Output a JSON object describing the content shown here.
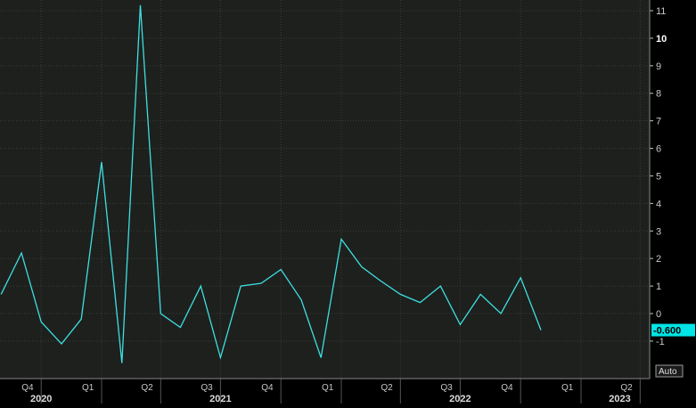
{
  "colors": {
    "background": "#000000",
    "plot_background": "#1e201e",
    "grid": "#3a3d3a",
    "line": "#3de0e0",
    "axis_text": "#c8c8c8",
    "year_text": "#dcdcdc",
    "badge_fill": "#00e5e5",
    "badge_text": "#000000"
  },
  "auto_button": {
    "label": "Auto"
  },
  "last_value_badge": {
    "label": "-0.600"
  },
  "chart_data": {
    "type": "line",
    "title": "",
    "xlabel": "",
    "ylabel": "",
    "ylim": [
      -2.1,
      11.3
    ],
    "y_ticks": [
      11,
      10,
      9,
      8,
      7,
      6,
      5,
      4,
      3,
      2,
      1,
      0,
      -1
    ],
    "grid": true,
    "x_axis": {
      "quarter_ticks": [
        {
          "label": "Q4",
          "date": "2020-10-01"
        },
        {
          "label": "Q1",
          "date": "2021-01-01"
        },
        {
          "label": "Q2",
          "date": "2021-04-01"
        },
        {
          "label": "Q3",
          "date": "2021-07-01"
        },
        {
          "label": "Q4",
          "date": "2021-10-01"
        },
        {
          "label": "Q1",
          "date": "2022-01-01"
        },
        {
          "label": "Q2",
          "date": "2022-04-01"
        },
        {
          "label": "Q3",
          "date": "2022-07-01"
        },
        {
          "label": "Q4",
          "date": "2022-10-01"
        },
        {
          "label": "Q1",
          "date": "2023-01-01"
        },
        {
          "label": "Q2",
          "date": "2023-04-01"
        }
      ],
      "year_labels": [
        {
          "label": "2020",
          "date": "2020-10-01"
        },
        {
          "label": "2021",
          "date": "2021-07-01"
        },
        {
          "label": "2022",
          "date": "2022-07-01"
        },
        {
          "label": "2023",
          "date": "2023-03-01"
        }
      ]
    },
    "series": [
      {
        "x": [
          "2020-08-01",
          "2020-09-01",
          "2020-10-01",
          "2020-11-01",
          "2020-12-01",
          "2021-01-01",
          "2021-02-01",
          "2021-03-01",
          "2021-04-01",
          "2021-05-01",
          "2021-06-01",
          "2021-07-01",
          "2021-08-01",
          "2021-09-01",
          "2021-10-01",
          "2021-11-01",
          "2021-12-01",
          "2022-01-01",
          "2022-02-01",
          "2022-03-01",
          "2022-04-01",
          "2022-05-01",
          "2022-06-01",
          "2022-07-01",
          "2022-08-01",
          "2022-09-01",
          "2022-10-01",
          "2022-11-01"
        ],
        "values": [
          0.7,
          2.2,
          -0.3,
          -1.1,
          -0.2,
          5.5,
          -1.8,
          11.2,
          0.0,
          -0.5,
          1.0,
          -1.6,
          1.0,
          1.1,
          1.6,
          0.5,
          -1.6,
          2.7,
          1.7,
          1.2,
          0.7,
          0.4,
          1.0,
          -0.4,
          0.7,
          0.0,
          1.3,
          -0.6
        ]
      }
    ]
  }
}
